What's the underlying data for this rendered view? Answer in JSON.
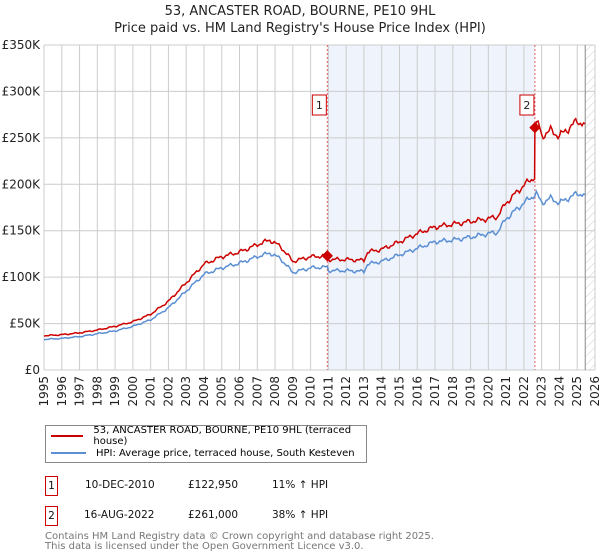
{
  "chart_data": {
    "type": "line",
    "title": "53, ANCASTER ROAD, BOURNE, PE10 9HL",
    "subtitle": "Price paid vs. HM Land Registry's House Price Index (HPI)",
    "ylim": [
      0,
      350000
    ],
    "xlim": [
      1995,
      2026
    ],
    "yticks": [
      {
        "v": 0,
        "label": "£0"
      },
      {
        "v": 50000,
        "label": "£50K"
      },
      {
        "v": 100000,
        "label": "£100K"
      },
      {
        "v": 150000,
        "label": "£150K"
      },
      {
        "v": 200000,
        "label": "£200K"
      },
      {
        "v": 250000,
        "label": "£250K"
      },
      {
        "v": 300000,
        "label": "£300K"
      },
      {
        "v": 350000,
        "label": "£350K"
      }
    ],
    "xticks": [
      "1995",
      "1996",
      "1997",
      "1998",
      "1999",
      "2000",
      "2001",
      "2002",
      "2003",
      "2004",
      "2005",
      "2006",
      "2007",
      "2008",
      "2009",
      "2010",
      "2011",
      "2012",
      "2013",
      "2014",
      "2015",
      "2016",
      "2017",
      "2018",
      "2019",
      "2020",
      "2021",
      "2022",
      "2023",
      "2024",
      "2025",
      "2026"
    ],
    "hpi": {
      "x": [
        1995,
        1996,
        1997,
        1998,
        1999,
        2000,
        2001,
        2002,
        2003,
        2004,
        2005,
        2006,
        2007,
        2007.7,
        2008.3,
        2009,
        2010,
        2010.94,
        2011,
        2012,
        2013,
        2013.2,
        2014,
        2015,
        2016,
        2017,
        2018,
        2019,
        2020,
        2020.5,
        2021,
        2022,
        2022.7,
        2023,
        2023.5,
        2024,
        2025,
        2025.45
      ],
      "y": [
        33000,
        34000,
        36000,
        39000,
        42000,
        47000,
        54000,
        67000,
        85000,
        103000,
        110000,
        115000,
        122000,
        126000,
        120000,
        105000,
        110000,
        110800,
        107000,
        107000,
        106000,
        114000,
        117000,
        124000,
        131000,
        138000,
        140000,
        143000,
        147000,
        148000,
        163000,
        180000,
        190000,
        180000,
        185000,
        180000,
        190000,
        189000
      ]
    },
    "property": {
      "x": [
        1995,
        1996,
        1997,
        1998,
        1999,
        2000,
        2001,
        2002,
        2003,
        2004,
        2005,
        2006,
        2007,
        2007.7,
        2008.3,
        2009,
        2010,
        2010.94,
        2011,
        2012,
        2013,
        2013.2,
        2014,
        2015,
        2016,
        2017,
        2018,
        2019,
        2020,
        2020.5,
        2021,
        2022,
        2022.6,
        2022.62,
        2022.8,
        2023,
        2023.5,
        2024,
        2025,
        2025.45
      ],
      "y": [
        37000,
        38000,
        40000,
        43000,
        47000,
        52000,
        60000,
        74000,
        94000,
        114000,
        122000,
        127000,
        135000,
        140000,
        133000,
        117000,
        122000,
        122950,
        119000,
        119000,
        118000,
        127000,
        130000,
        138000,
        147000,
        154000,
        157000,
        160000,
        163000,
        165000,
        180000,
        199000,
        208000,
        261000,
        266000,
        252000,
        258000,
        252000,
        268000,
        265000
      ]
    },
    "sales": [
      {
        "n": "1",
        "x": 2010.94,
        "y": 122950
      },
      {
        "n": "2",
        "x": 2022.62,
        "y": 261000
      }
    ],
    "shade": [
      2010.94,
      2022.62
    ],
    "hatch_from": 2025.45,
    "colors": {
      "property": "#cc0000",
      "hpi": "#5b8fd4",
      "shade": "#eef3fc"
    }
  },
  "legend": {
    "property": "53, ANCASTER ROAD, BOURNE, PE10 9HL (terraced house)",
    "hpi": "HPI: Average price, terraced house, South Kesteven"
  },
  "transactions": [
    {
      "n": "1",
      "date": "10-DEC-2010",
      "price": "£122,950",
      "delta": "11% ↑ HPI"
    },
    {
      "n": "2",
      "date": "16-AUG-2022",
      "price": "£261,000",
      "delta": "38% ↑ HPI"
    }
  ],
  "footer": [
    "Contains HM Land Registry data © Crown copyright and database right 2025.",
    "This data is licensed under the Open Government Licence v3.0."
  ]
}
